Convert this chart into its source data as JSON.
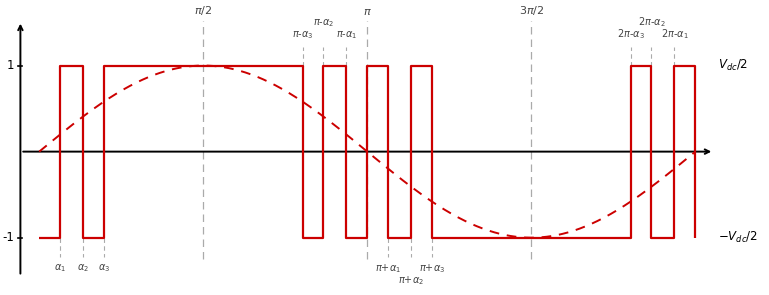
{
  "alpha1": 0.2,
  "alpha2": 0.42,
  "alpha3": 0.62,
  "pi": 3.14159265358979,
  "background_color": "#ffffff",
  "pwm_color": "#cc0000",
  "sine_color": "#cc0000",
  "grid_color": "#999999",
  "axis_color": "#000000",
  "label_color": "#444444",
  "figwidth": 7.69,
  "figheight": 2.95,
  "dpi": 100
}
